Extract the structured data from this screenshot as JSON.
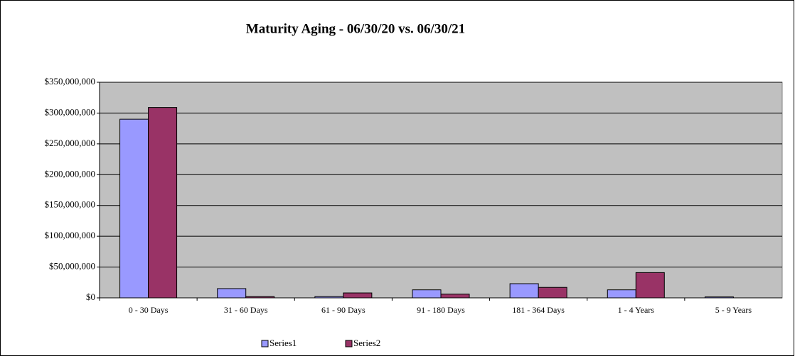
{
  "chart_data": {
    "type": "bar",
    "title": "Maturity Aging - 06/30/20 vs. 06/30/21",
    "categories": [
      "0 - 30 Days",
      "31 - 60 Days",
      "61 - 90 Days",
      "91 - 180 Days",
      "181 - 364 Days",
      "1 - 4 Years",
      "5 - 9 Years"
    ],
    "series": [
      {
        "name": "Series1",
        "color": "#9999ff",
        "values": [
          290000000,
          15000000,
          2000000,
          13000000,
          23000000,
          13000000,
          1500000
        ]
      },
      {
        "name": "Series2",
        "color": "#993366",
        "values": [
          309000000,
          2000000,
          8000000,
          6000000,
          17000000,
          41000000,
          0
        ]
      }
    ],
    "ylim": [
      0,
      350000000
    ],
    "yticks": [
      {
        "value": 0,
        "label": "$0"
      },
      {
        "value": 50000000,
        "label": "$50,000,000"
      },
      {
        "value": 100000000,
        "label": "$100,000,000"
      },
      {
        "value": 150000000,
        "label": "$150,000,000"
      },
      {
        "value": 200000000,
        "label": "$200,000,000"
      },
      {
        "value": 250000000,
        "label": "$250,000,000"
      },
      {
        "value": 300000000,
        "label": "$300,000,000"
      },
      {
        "value": 350000000,
        "label": "$350,000,000"
      }
    ],
    "grid": true,
    "legend": "bottom"
  }
}
